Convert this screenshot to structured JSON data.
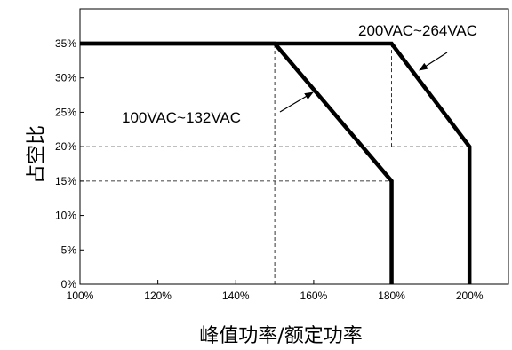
{
  "chart_data": {
    "type": "line",
    "xlabel": "峰值功率/额定功率",
    "ylabel": "占空比",
    "xlim": [
      100,
      210
    ],
    "ylim": [
      0,
      40
    ],
    "x_ticks": [
      100,
      120,
      140,
      160,
      180,
      200
    ],
    "x_tick_labels": [
      "100%",
      "120%",
      "140%",
      "160%",
      "180%",
      "200%"
    ],
    "y_ticks": [
      0,
      5,
      10,
      15,
      20,
      25,
      30,
      35
    ],
    "y_tick_labels": [
      "0%",
      "5%",
      "10%",
      "15%",
      "20%",
      "25%",
      "30%",
      "35%"
    ],
    "grid": false,
    "series": [
      {
        "name": "100VAC~132VAC",
        "x": [
          100,
          150,
          180,
          180
        ],
        "y": [
          35,
          35,
          15,
          0
        ],
        "color": "#000000"
      },
      {
        "name": "200VAC~264VAC",
        "x": [
          100,
          180,
          200,
          200
        ],
        "y": [
          35,
          35,
          20,
          0
        ],
        "color": "#000000"
      }
    ],
    "reference_lines": [
      {
        "x1": 150,
        "y1": 0,
        "x2": 150,
        "y2": 35
      },
      {
        "x1": 180,
        "y1": 20,
        "x2": 180,
        "y2": 35
      },
      {
        "x1": 100,
        "y1": 20,
        "x2": 200,
        "y2": 20
      },
      {
        "x1": 100,
        "y1": 15,
        "x2": 180,
        "y2": 15
      }
    ]
  }
}
